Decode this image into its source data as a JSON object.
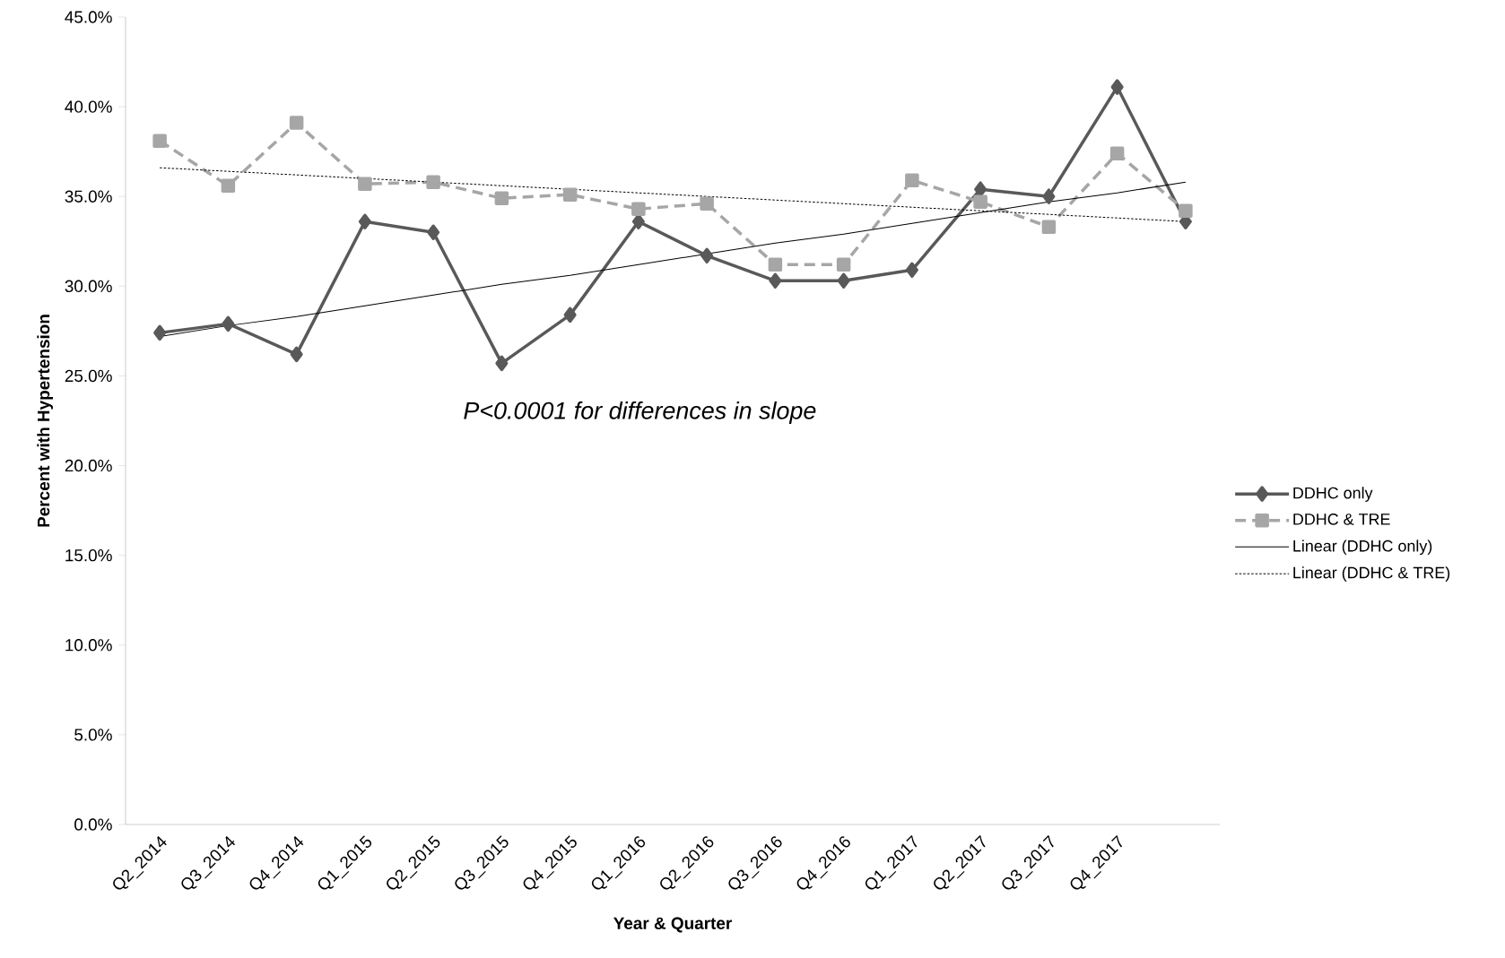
{
  "chart_data": {
    "type": "line",
    "xlabel": "Year & Quarter",
    "ylabel": "Percent with Hypertension",
    "categories": [
      "Q2_2014",
      "Q3_2014",
      "Q4_2014",
      "Q1_2015",
      "Q2_2015",
      "Q3_2015",
      "Q4_2015",
      "Q1_2016",
      "Q2_2016",
      "Q3_2016",
      "Q4_2016",
      "Q1_2017",
      "Q2_2017",
      "Q3_2017",
      "Q4_2017",
      null
    ],
    "series": [
      {
        "name": "DDHC only",
        "color": "#595959",
        "marker": "diamond",
        "line_style": "solid",
        "values": [
          27.4,
          27.9,
          26.2,
          33.6,
          33.0,
          25.7,
          28.4,
          33.6,
          31.7,
          30.3,
          30.3,
          30.9,
          35.4,
          35.0,
          41.1,
          33.6
        ]
      },
      {
        "name": "DDHC & TRE",
        "color": "#a6a6a6",
        "marker": "square",
        "line_style": "dashed",
        "values": [
          38.1,
          35.6,
          39.1,
          35.7,
          35.8,
          34.9,
          35.1,
          34.3,
          34.6,
          31.2,
          31.2,
          35.9,
          34.7,
          33.3,
          37.4,
          34.2
        ]
      },
      {
        "name": "Linear (DDHC only)",
        "color": "#000000",
        "marker": "none",
        "line_style": "solid",
        "values": [
          27.2,
          27.8,
          28.3,
          28.9,
          29.5,
          30.1,
          30.6,
          31.2,
          31.8,
          32.4,
          32.9,
          33.5,
          34.1,
          34.7,
          35.2,
          35.8
        ]
      },
      {
        "name": "Linear (DDHC & TRE)",
        "color": "#000000",
        "marker": "none",
        "line_style": "dotted",
        "values": [
          36.6,
          36.4,
          36.2,
          36.0,
          35.8,
          35.6,
          35.4,
          35.2,
          35.0,
          34.8,
          34.6,
          34.4,
          34.2,
          34.0,
          33.8,
          33.6
        ]
      }
    ],
    "ylim": [
      0,
      45
    ],
    "yticks": [
      {
        "value": 0,
        "label": "0.0%"
      },
      {
        "value": 5,
        "label": "5.0%"
      },
      {
        "value": 10,
        "label": "10.0%"
      },
      {
        "value": 15,
        "label": "15.0%"
      },
      {
        "value": 20,
        "label": "20.0%"
      },
      {
        "value": 25,
        "label": "25.0%"
      },
      {
        "value": 30,
        "label": "30.0%"
      },
      {
        "value": 35,
        "label": "35.0%"
      },
      {
        "value": 40,
        "label": "40.0%"
      },
      {
        "value": 45,
        "label": "45.0%"
      }
    ],
    "grid": false,
    "legend": "right",
    "annotations": [
      "P<0.0001 for differences in slope"
    ]
  }
}
